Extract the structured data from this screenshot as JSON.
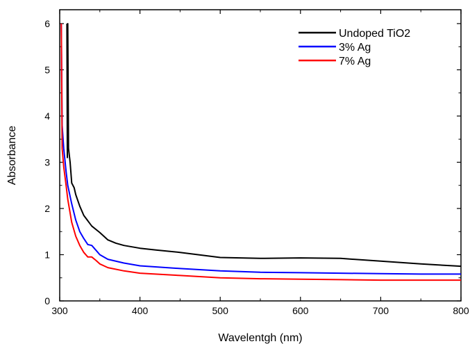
{
  "chart_data": {
    "type": "line",
    "xlabel": "Wavelentgh (nm)",
    "ylabel": "Absorbance",
    "xlim": [
      300,
      800
    ],
    "ylim": [
      0,
      6.3
    ],
    "xticks": [
      "300",
      "400",
      "500",
      "600",
      "700",
      "800"
    ],
    "yticks": [
      "0",
      "1",
      "2",
      "3",
      "4",
      "5",
      "6"
    ],
    "grid": false,
    "legend_position": "top-right",
    "series": [
      {
        "name": "Undoped TiO2",
        "color": "#000000",
        "points": [
          [
            309,
            6.0
          ],
          [
            309.5,
            3.1
          ],
          [
            310,
            6.0
          ],
          [
            311,
            3.3
          ],
          [
            313,
            3.0
          ],
          [
            315,
            2.55
          ],
          [
            318,
            2.45
          ],
          [
            320,
            2.3
          ],
          [
            325,
            2.05
          ],
          [
            330,
            1.85
          ],
          [
            340,
            1.62
          ],
          [
            350,
            1.48
          ],
          [
            360,
            1.32
          ],
          [
            370,
            1.25
          ],
          [
            380,
            1.2
          ],
          [
            400,
            1.14
          ],
          [
            420,
            1.1
          ],
          [
            450,
            1.05
          ],
          [
            500,
            0.94
          ],
          [
            550,
            0.92
          ],
          [
            600,
            0.93
          ],
          [
            650,
            0.92
          ],
          [
            700,
            0.86
          ],
          [
            750,
            0.8
          ],
          [
            800,
            0.75
          ]
        ]
      },
      {
        "name": " 3% Ag",
        "color": "#0000ff",
        "points": [
          [
            302,
            6.0
          ],
          [
            303,
            3.8
          ],
          [
            305,
            3.3
          ],
          [
            308,
            2.8
          ],
          [
            310,
            2.5
          ],
          [
            315,
            2.1
          ],
          [
            320,
            1.75
          ],
          [
            325,
            1.5
          ],
          [
            330,
            1.35
          ],
          [
            335,
            1.22
          ],
          [
            340,
            1.2
          ],
          [
            345,
            1.1
          ],
          [
            350,
            1.0
          ],
          [
            360,
            0.9
          ],
          [
            380,
            0.82
          ],
          [
            400,
            0.76
          ],
          [
            450,
            0.7
          ],
          [
            500,
            0.65
          ],
          [
            550,
            0.62
          ],
          [
            600,
            0.61
          ],
          [
            650,
            0.6
          ],
          [
            700,
            0.59
          ],
          [
            750,
            0.58
          ],
          [
            800,
            0.58
          ]
        ]
      },
      {
        "name": "7% Ag",
        "color": "#ff0000",
        "points": [
          [
            302,
            6.0
          ],
          [
            303,
            3.3
          ],
          [
            305,
            2.9
          ],
          [
            308,
            2.5
          ],
          [
            310,
            2.2
          ],
          [
            315,
            1.7
          ],
          [
            320,
            1.4
          ],
          [
            325,
            1.2
          ],
          [
            330,
            1.05
          ],
          [
            335,
            0.95
          ],
          [
            340,
            0.95
          ],
          [
            345,
            0.88
          ],
          [
            350,
            0.8
          ],
          [
            360,
            0.72
          ],
          [
            380,
            0.65
          ],
          [
            400,
            0.6
          ],
          [
            450,
            0.55
          ],
          [
            500,
            0.5
          ],
          [
            550,
            0.48
          ],
          [
            600,
            0.47
          ],
          [
            650,
            0.46
          ],
          [
            700,
            0.45
          ],
          [
            750,
            0.45
          ],
          [
            800,
            0.45
          ]
        ]
      }
    ]
  }
}
